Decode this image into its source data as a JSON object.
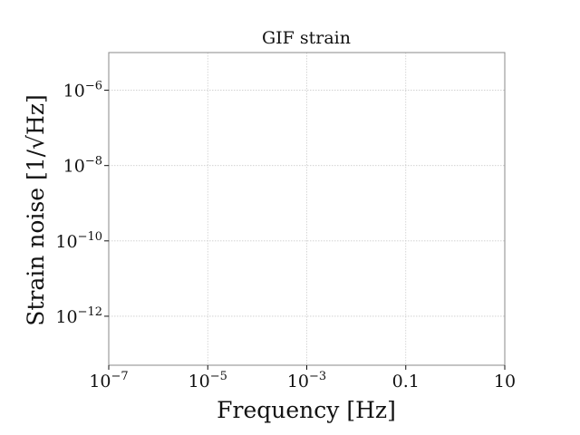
{
  "chart_data": {
    "type": "line",
    "title": "GIF strain",
    "xlabel": "Frequency [Hz]",
    "ylabel": "Strain noise [1/√Hz]",
    "x_scale": "log",
    "y_scale": "log",
    "xlim": [
      1e-07,
      10
    ],
    "ylim": [
      5e-14,
      1e-05
    ],
    "grid": true,
    "x_ticks": [
      {
        "value": 1e-07,
        "base": "10",
        "exp": "−7"
      },
      {
        "value": 1e-05,
        "base": "10",
        "exp": "−5"
      },
      {
        "value": 0.001,
        "base": "10",
        "exp": "−3"
      },
      {
        "value": 0.1,
        "base": "0.1",
        "exp": ""
      },
      {
        "value": 10,
        "base": "10",
        "exp": ""
      }
    ],
    "y_ticks": [
      {
        "value": 1e-06,
        "base": "10",
        "exp": "−6"
      },
      {
        "value": 1e-08,
        "base": "10",
        "exp": "−8"
      },
      {
        "value": 1e-10,
        "base": "10",
        "exp": "−10"
      },
      {
        "value": 1e-12,
        "base": "10",
        "exp": "−12"
      }
    ],
    "series": []
  },
  "colors": {
    "axis": "#888888",
    "grid": "#cccccc",
    "text": "#111111"
  }
}
